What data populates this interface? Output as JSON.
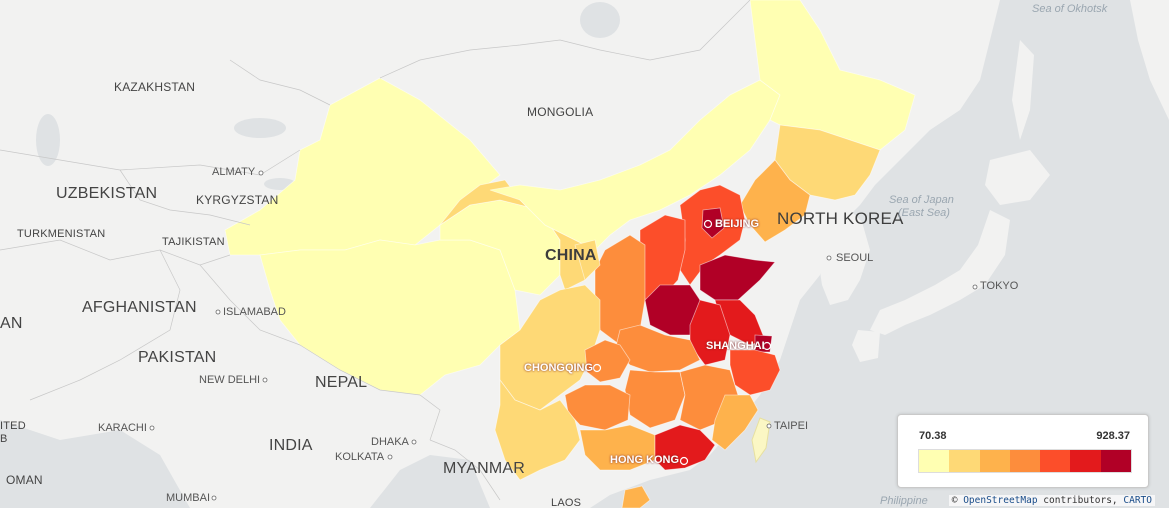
{
  "map": {
    "countries": [
      "KAZAKHSTAN",
      "MONGOLIA",
      "UZBEKISTAN",
      "KYRGYZSTAN",
      "TURKMENISTAN",
      "TAJIKISTAN",
      "AFGHANISTAN",
      "PAKISTAN",
      "NEPAL",
      "INDIA",
      "MYANMAR",
      "CHINA",
      "NORTH KOREA",
      "OMAN",
      "LAOS",
      "AN",
      "ITED",
      "B"
    ],
    "cities": [
      "ALMATY",
      "ISLAMABAD",
      "NEW DELHI",
      "KARACHI",
      "MUMBAI",
      "DHAKA",
      "KOLKATA",
      "CHONGQING",
      "SHANGHAI",
      "BEIJING",
      "HONG KONG",
      "SEOUL",
      "TOKYO",
      "TAIPEI"
    ],
    "seas": [
      "Sea of Okhotsk",
      "Sea of Japan",
      "(East Sea)",
      "Philippine"
    ]
  },
  "legend": {
    "min": "70.38",
    "max": "928.37",
    "colors": [
      "#ffffb2",
      "#fed976",
      "#feb24c",
      "#fd8d3c",
      "#fc4e2a",
      "#e31a1c",
      "#b10026"
    ]
  },
  "attribution": {
    "symbol": "©",
    "osm": "OpenStreetMap",
    "contributors": "contributors,",
    "carto": "CARTO"
  }
}
